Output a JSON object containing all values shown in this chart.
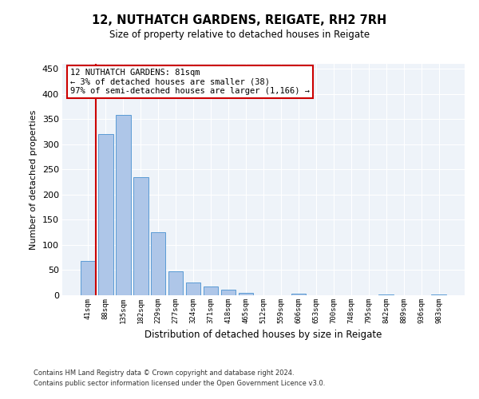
{
  "title1": "12, NUTHATCH GARDENS, REIGATE, RH2 7RH",
  "title2": "Size of property relative to detached houses in Reigate",
  "xlabel": "Distribution of detached houses by size in Reigate",
  "ylabel": "Number of detached properties",
  "bar_labels": [
    "41sqm",
    "88sqm",
    "135sqm",
    "182sqm",
    "229sqm",
    "277sqm",
    "324sqm",
    "371sqm",
    "418sqm",
    "465sqm",
    "512sqm",
    "559sqm",
    "606sqm",
    "653sqm",
    "700sqm",
    "748sqm",
    "795sqm",
    "842sqm",
    "889sqm",
    "936sqm",
    "983sqm"
  ],
  "bar_values": [
    68,
    320,
    358,
    235,
    126,
    48,
    25,
    17,
    11,
    4,
    0,
    0,
    3,
    0,
    0,
    0,
    0,
    2,
    0,
    0,
    2
  ],
  "bar_color": "#aec6e8",
  "bar_edge_color": "#5b9bd5",
  "bg_color": "#eef3f9",
  "grid_color": "#ffffff",
  "annotation_line1": "12 NUTHATCH GARDENS: 81sqm",
  "annotation_line2": "← 3% of detached houses are smaller (38)",
  "annotation_line3": "97% of semi-detached houses are larger (1,166) →",
  "annotation_box_color": "#ffffff",
  "annotation_box_edge_color": "#cc0000",
  "ylim": [
    0,
    460
  ],
  "yticks": [
    0,
    50,
    100,
    150,
    200,
    250,
    300,
    350,
    400,
    450
  ],
  "footnote1": "Contains HM Land Registry data © Crown copyright and database right 2024.",
  "footnote2": "Contains public sector information licensed under the Open Government Licence v3.0."
}
